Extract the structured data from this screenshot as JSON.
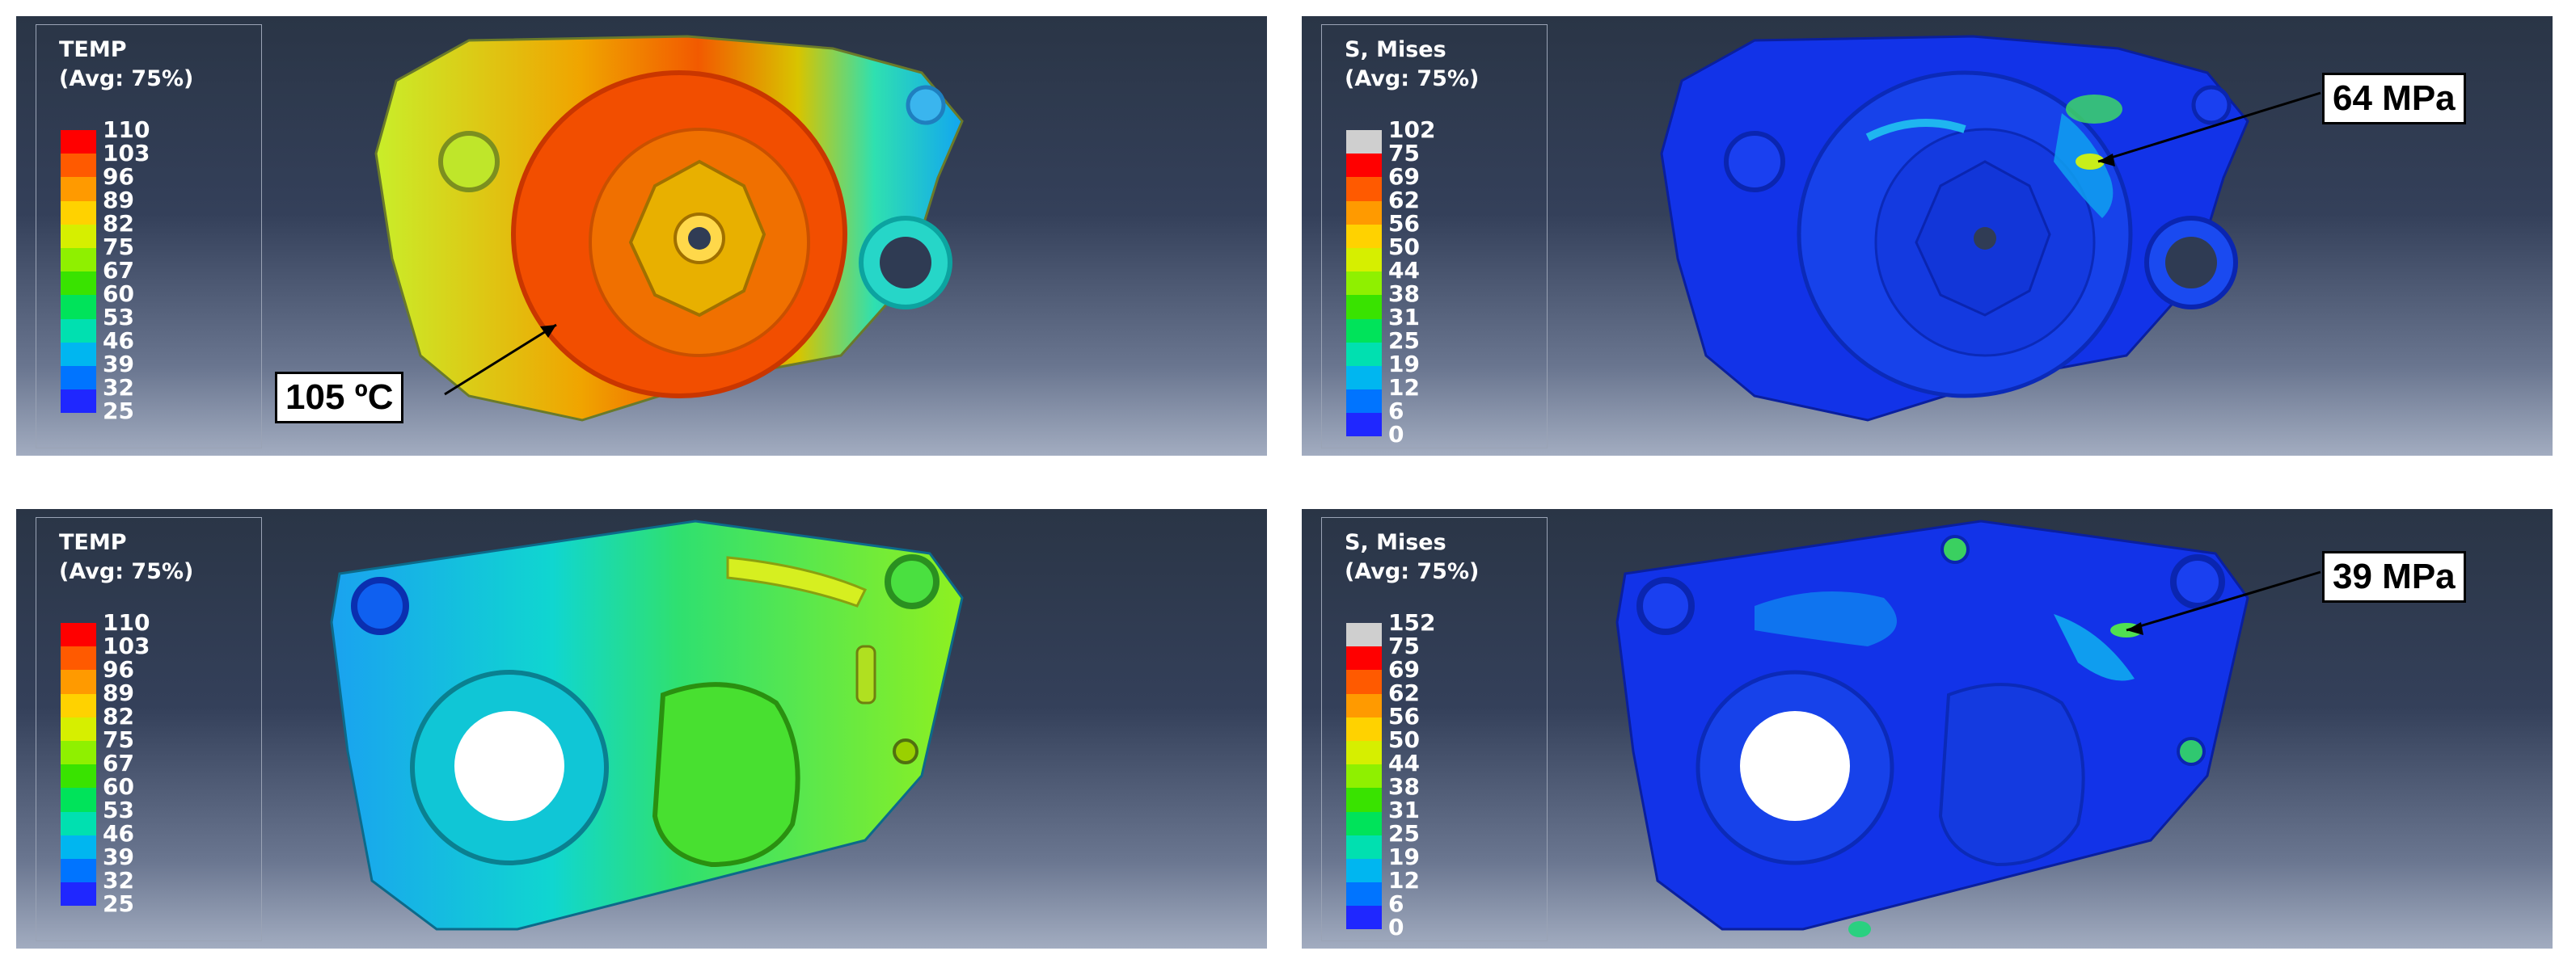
{
  "panels": [
    {
      "legend_title_line1": "TEMP",
      "legend_title_line2": "(Avg: 75%)",
      "ticks": [
        "110",
        "103",
        "96",
        "89",
        "82",
        "75",
        "67",
        "60",
        "53",
        "46",
        "39",
        "32",
        "25"
      ],
      "callout": "105 ºC"
    },
    {
      "legend_title_line1": "S, Mises",
      "legend_title_line2": "(Avg: 75%)",
      "ticks": [
        "102",
        "75",
        "69",
        "62",
        "56",
        "50",
        "44",
        "38",
        "31",
        "25",
        "19",
        "12",
        "6",
        "0"
      ],
      "callout": "64 MPa"
    },
    {
      "legend_title_line1": "TEMP",
      "legend_title_line2": "(Avg: 75%)",
      "ticks": [
        "110",
        "103",
        "96",
        "89",
        "82",
        "75",
        "67",
        "60",
        "53",
        "46",
        "39",
        "32",
        "25"
      ]
    },
    {
      "legend_title_line1": "S, Mises",
      "legend_title_line2": "(Avg: 75%)",
      "ticks": [
        "152",
        "75",
        "69",
        "62",
        "56",
        "50",
        "44",
        "38",
        "31",
        "25",
        "19",
        "12",
        "6",
        "0"
      ],
      "callout": "39 MPa"
    }
  ],
  "colors": {
    "temp_scale": [
      "#ff0000",
      "#ff5a00",
      "#ff9a00",
      "#ffd200",
      "#d6ef00",
      "#8ff000",
      "#39e300",
      "#00e35a",
      "#00e0b0",
      "#00b6f0",
      "#0074ff",
      "#1f27ff"
    ],
    "stress_scale": [
      "#cfcfcf",
      "#ff0000",
      "#ff5a00",
      "#ff9a00",
      "#ffd200",
      "#d6ef00",
      "#8ff000",
      "#39e300",
      "#00e35a",
      "#00e0b0",
      "#00b6f0",
      "#0074ff",
      "#1f27ff"
    ]
  }
}
